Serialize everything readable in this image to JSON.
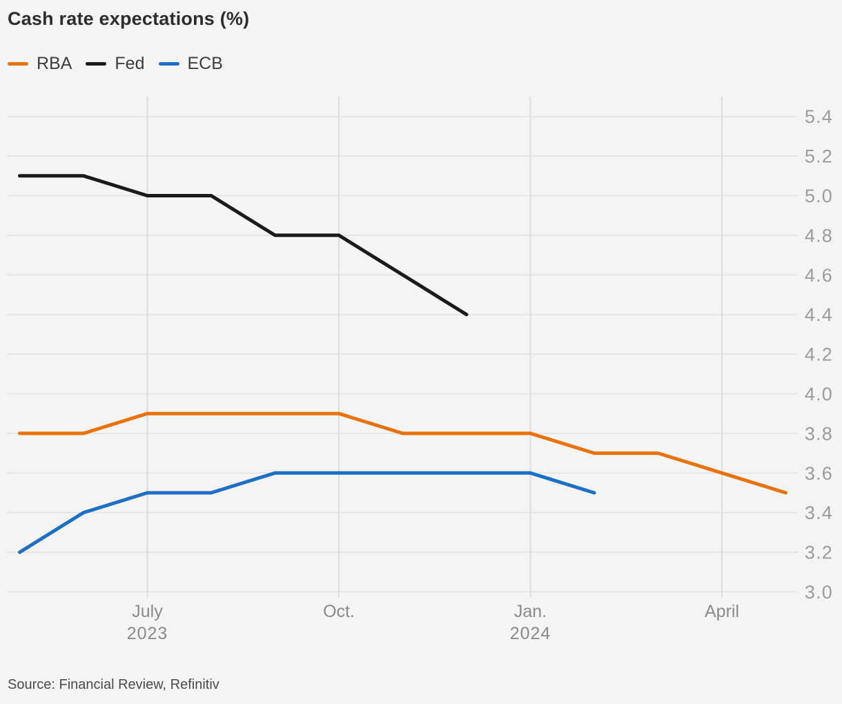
{
  "title": "Cash rate expectations (%)",
  "source": "Source: Financial Review, Refinitiv",
  "colors": {
    "background": "#f4f4f4",
    "grid_horizontal": "#e2e2e2",
    "grid_vertical": "#dcdcdc",
    "y_tick_text": "#9b9b9b",
    "x_tick_text": "#8a8a8a",
    "title_text": "#2d2d2d",
    "legend_text": "#3d3d3d",
    "source_text": "#4a4a4a"
  },
  "legend": [
    {
      "label": "RBA",
      "color": "#e8730d"
    },
    {
      "label": "Fed",
      "color": "#1a1a1a"
    },
    {
      "label": "ECB",
      "color": "#1d6fc5"
    }
  ],
  "chart_data": {
    "type": "line",
    "title": "Cash rate expectations (%)",
    "x_categories": [
      "May 2023",
      "Jun 2023",
      "Jul 2023",
      "Aug 2023",
      "Sep 2023",
      "Oct 2023",
      "Nov 2023",
      "Dec 2023",
      "Jan 2024",
      "Feb 2024",
      "Mar 2024",
      "Apr 2024",
      "May 2024"
    ],
    "series": [
      {
        "name": "RBA",
        "color": "#e8730d",
        "values": [
          3.8,
          3.8,
          3.9,
          3.9,
          3.9,
          3.9,
          3.8,
          3.8,
          3.8,
          3.7,
          3.7,
          3.6,
          3.5
        ]
      },
      {
        "name": "Fed",
        "color": "#1a1a1a",
        "values": [
          5.1,
          5.1,
          5.0,
          5.0,
          4.8,
          4.8,
          4.6,
          4.4
        ]
      },
      {
        "name": "ECB",
        "color": "#1d6fc5",
        "values": [
          3.2,
          3.4,
          3.5,
          3.5,
          3.6,
          3.6,
          3.6,
          3.6,
          3.6,
          3.5
        ]
      }
    ],
    "y_axis": {
      "side": "right",
      "min": 3.0,
      "max": 5.4,
      "tick_step": 0.2,
      "tick_labels": [
        "3.0",
        "3.2",
        "3.4",
        "3.6",
        "3.8",
        "4.0",
        "4.2",
        "4.4",
        "4.6",
        "4.8",
        "5.0",
        "5.2",
        "5.4"
      ]
    },
    "x_axis": {
      "ticks": [
        {
          "label": "July",
          "sublabel": "2023",
          "month_index": 2
        },
        {
          "label": "Oct.",
          "sublabel": "",
          "month_index": 5
        },
        {
          "label": "Jan.",
          "sublabel": "2024",
          "month_index": 8
        },
        {
          "label": "April",
          "sublabel": "",
          "month_index": 11
        }
      ]
    },
    "grid": true,
    "legend_position": "top-left"
  }
}
